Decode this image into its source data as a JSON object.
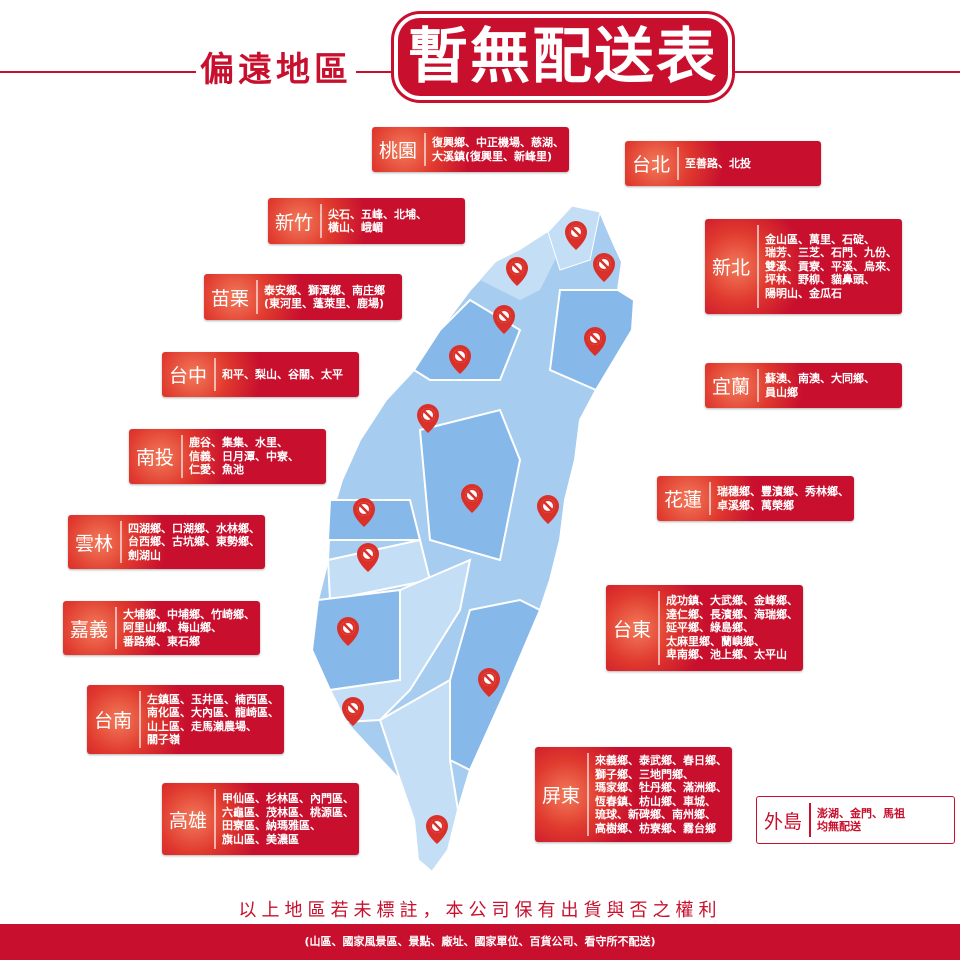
{
  "title": {
    "prefix": "偏遠地區",
    "main": "暫無配送表"
  },
  "colors": {
    "accent": "#c8102e",
    "map_light": "#c4def6",
    "map_mid": "#a6ccf0",
    "map_dark": "#86b8ea"
  },
  "regions": [
    {
      "name": "桃園",
      "areas": [
        "復興鄉、中正機場、慈湖、",
        "大溪鎮(復興里、新峰里)"
      ]
    },
    {
      "name": "台北",
      "areas": [
        "至善路、北投"
      ]
    },
    {
      "name": "新竹",
      "areas": [
        "尖石、五峰、北埔、",
        "橫山、峨嵋"
      ]
    },
    {
      "name": "苗栗",
      "areas": [
        "泰安鄉、獅潭鄉、南庄鄉",
        "(東河里、蓬萊里、鹿場)"
      ]
    },
    {
      "name": "新北",
      "areas": [
        "金山區、萬里、石碇、",
        "瑞芳、三芝、石門、九份、",
        "雙溪、貢寮、平溪、烏來、",
        "坪林、野柳、貓鼻頭、",
        "陽明山、金瓜石"
      ]
    },
    {
      "name": "宜蘭",
      "areas": [
        "蘇澳、南澳、大同鄉、",
        "員山鄉"
      ]
    },
    {
      "name": "台中",
      "areas": [
        "和平、梨山、谷關、太平"
      ]
    },
    {
      "name": "南投",
      "areas": [
        "鹿谷、集集、水里、",
        "信義、日月潭、中寮、",
        "仁愛、魚池"
      ]
    },
    {
      "name": "雲林",
      "areas": [
        "四湖鄉、口湖鄉、水林鄉、",
        "台西鄉、古坑鄉、東勢鄉、",
        "劍湖山"
      ]
    },
    {
      "name": "花蓮",
      "areas": [
        "瑞穗鄉、豐濱鄉、秀林鄉、",
        "卓溪鄉、萬榮鄉"
      ]
    },
    {
      "name": "嘉義",
      "areas": [
        "大埔鄉、中埔鄉、竹崎鄉、",
        "阿里山鄉、梅山鄉、",
        "番路鄉、東石鄉"
      ]
    },
    {
      "name": "台南",
      "areas": [
        "左鎮區、玉井區、楠西區、",
        "南化區、大內區、龍崎區、",
        "山上區、走馬瀨農場、",
        "關子嶺"
      ]
    },
    {
      "name": "台東",
      "areas": [
        "成功鎮、大武鄉、金峰鄉、",
        "達仁鄉、長濱鄉、海瑞鄉、",
        "延平鄉、綠島鄉、",
        "太麻里鄉、蘭嶼鄉、",
        "卑南鄉、池上鄉、太平山"
      ]
    },
    {
      "name": "高雄",
      "areas": [
        "甲仙區、杉林區、內門區、",
        "六龜區、茂林區、桃源區、",
        "田寮區、納瑪雅區、",
        "旗山區、美濃區"
      ]
    },
    {
      "name": "屏東",
      "areas": [
        "來義鄉、泰武鄉、春日鄉、",
        "獅子鄉、三地門鄉、",
        "瑪家鄉、牡丹鄉、滿洲鄉、",
        "恆春鎮、枋山鄉、車城、",
        "琉球、新碑鄉、南州鄉、",
        "高樹鄉、枋寮鄉、霧台鄉"
      ]
    },
    {
      "name": "外島",
      "areas": [
        "澎湖、金門、馬祖",
        "均無配送"
      ]
    }
  ],
  "map_pin_icon": "no-delivery-pin-icon",
  "footer": {
    "note": "以上地區若未標註，本公司保有出貨與否之權利",
    "exclusions": "(山區、國家風景區、景點、廠址、國家單位、百貨公司、看守所不配送)"
  }
}
